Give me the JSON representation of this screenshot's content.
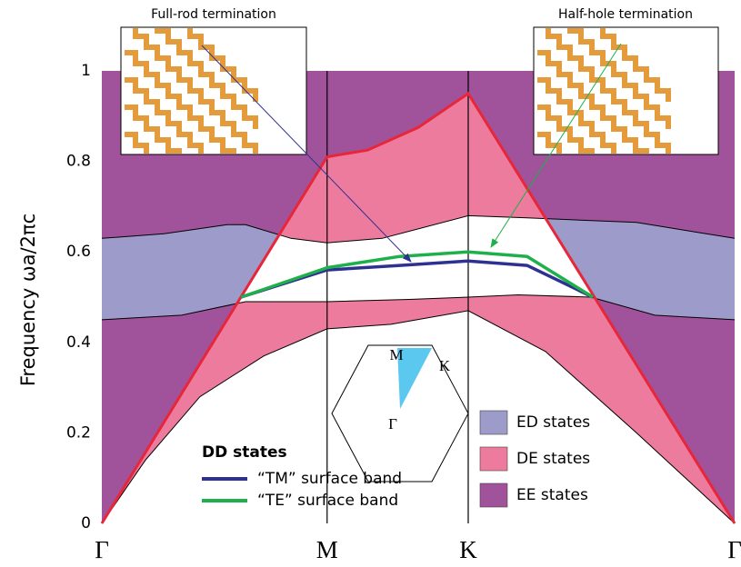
{
  "chart_data": {
    "type": "band",
    "ylabel": "Frequency  ωa/2πc",
    "xlim": [
      0,
      1
    ],
    "xticks": [
      {
        "value": 0,
        "label": "Γ"
      },
      {
        "value": 0.356,
        "label": "M"
      },
      {
        "value": 0.579,
        "label": "K"
      },
      {
        "value": 1,
        "label": "Γ"
      }
    ],
    "ylim": [
      0,
      1
    ],
    "yticks": [
      0,
      0.2,
      0.4,
      0.6,
      0.8,
      1
    ],
    "annotations": [
      "Full-rod termination",
      "Half-hole termination"
    ],
    "bz_labels": [
      "M",
      "K",
      "Γ"
    ],
    "regions": [
      {
        "name": "ED states",
        "color": "#9d9bc9"
      },
      {
        "name": "DE states",
        "color": "#ec7b9e"
      },
      {
        "name": "EE states",
        "color": "#a0529a"
      }
    ],
    "light_line": {
      "color": "#e8263a",
      "x": [
        0,
        0.356,
        0.42,
        0.5,
        0.579,
        1
      ],
      "y": [
        0,
        0.81,
        0.825,
        0.875,
        0.95,
        0
      ]
    },
    "band_bottom": {
      "x": [
        0,
        0.069,
        0.155,
        0.256,
        0.356,
        0.457,
        0.579,
        0.701,
        0.845,
        1
      ],
      "y": [
        0,
        0.14,
        0.28,
        0.37,
        0.43,
        0.44,
        0.47,
        0.38,
        0.2,
        0
      ]
    },
    "gap_bottom": {
      "x": [
        0,
        0.126,
        0.227,
        0.356,
        0.486,
        0.579,
        0.658,
        0.773,
        0.874,
        1
      ],
      "y": [
        0.45,
        0.46,
        0.49,
        0.49,
        0.495,
        0.5,
        0.505,
        0.5,
        0.46,
        0.45
      ]
    },
    "gap_top": {
      "x": [
        0,
        0.098,
        0.198,
        0.227,
        0.299,
        0.356,
        0.443,
        0.579,
        0.672,
        0.845,
        1
      ],
      "y": [
        0.63,
        0.64,
        0.66,
        0.66,
        0.63,
        0.62,
        0.63,
        0.68,
        0.675,
        0.665,
        0.63
      ]
    },
    "legend_title": "DD states",
    "series": [
      {
        "name": "“TM” surface band",
        "color": "#2e3192",
        "x": [
          0.22,
          0.356,
          0.471,
          0.579,
          0.672,
          0.776
        ],
        "values": [
          0.5,
          0.56,
          0.57,
          0.58,
          0.57,
          0.5
        ]
      },
      {
        "name": "“TE” surface band",
        "color": "#1fb04b",
        "x": [
          0.22,
          0.356,
          0.471,
          0.579,
          0.672,
          0.776
        ],
        "values": [
          0.5,
          0.565,
          0.59,
          0.6,
          0.59,
          0.5
        ]
      }
    ]
  }
}
